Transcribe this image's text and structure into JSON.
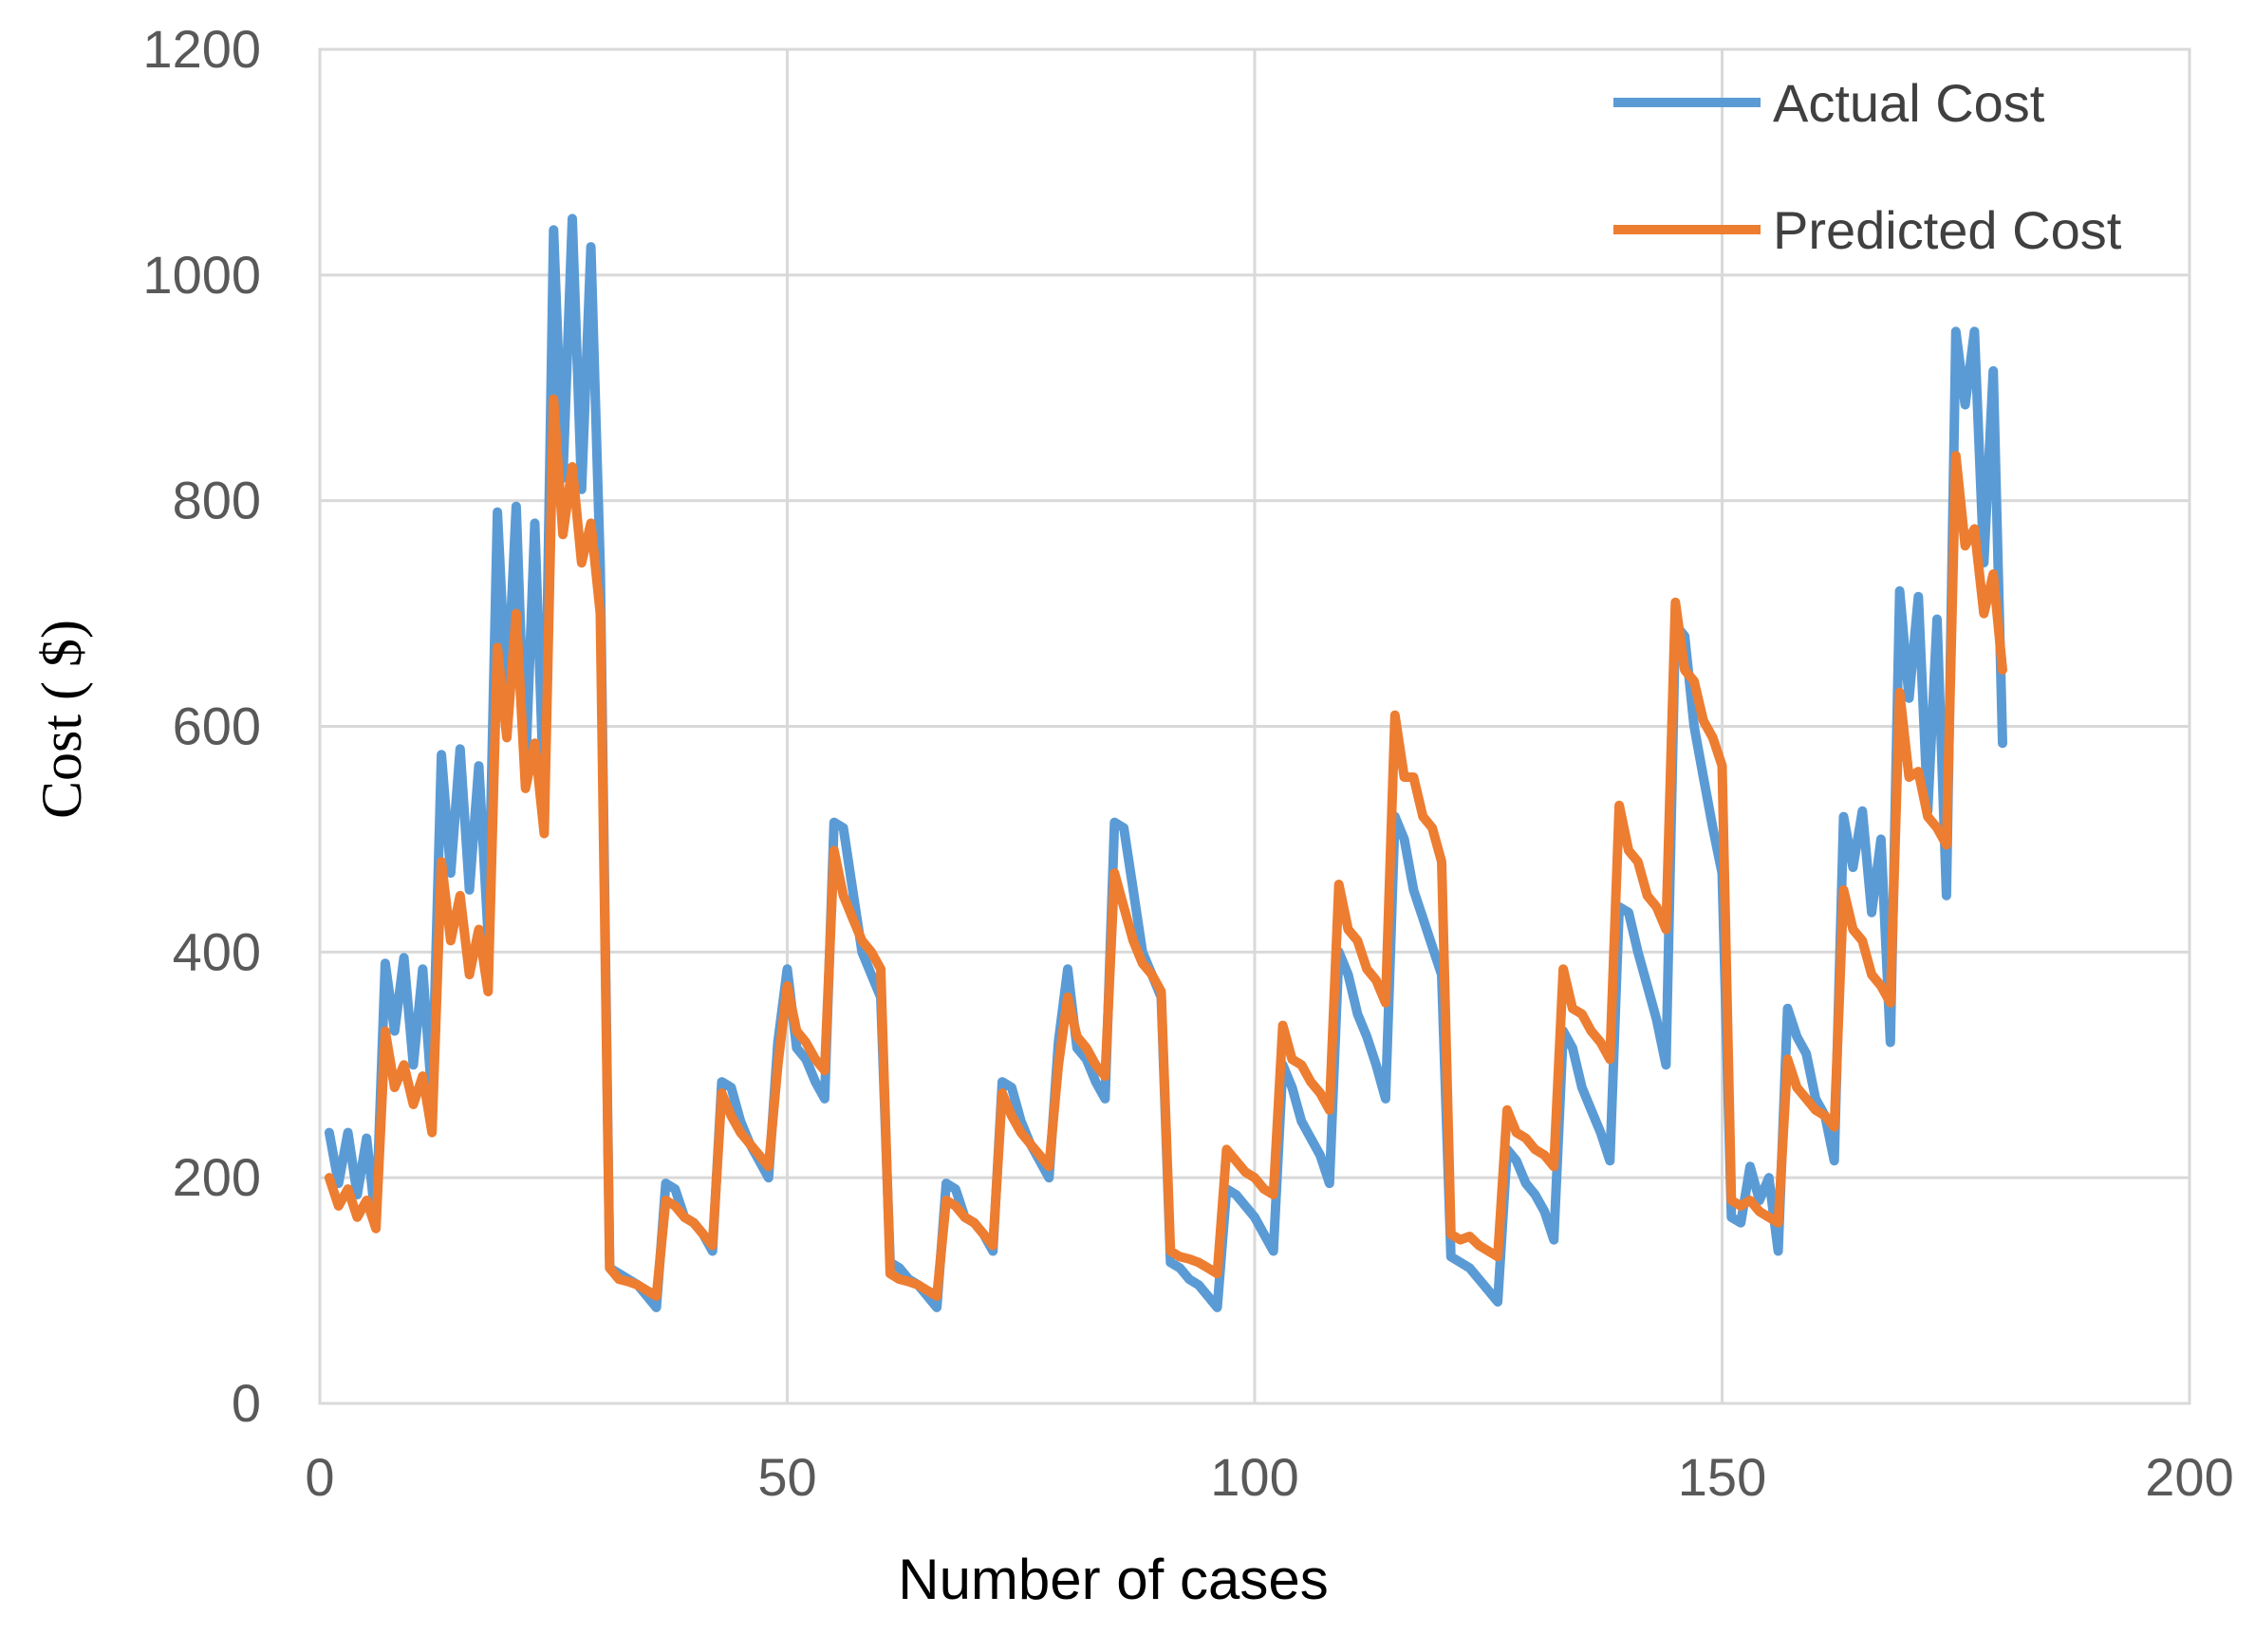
{
  "chart_data": {
    "type": "line",
    "title": "",
    "xlabel": "Number of cases",
    "ylabel": "Cost ( $)",
    "xlim": [
      0,
      200
    ],
    "ylim": [
      0,
      1200
    ],
    "xticks": [
      0,
      50,
      100,
      150,
      200
    ],
    "yticks": [
      0,
      200,
      400,
      600,
      800,
      1000,
      1200
    ],
    "grid": true,
    "legend_position": "top-right",
    "series": [
      {
        "name": "Actual Cost",
        "color": "#5B9BD5",
        "x": [
          1,
          2,
          3,
          4,
          5,
          6,
          7,
          8,
          9,
          10,
          11,
          12,
          13,
          14,
          15,
          16,
          17,
          18,
          19,
          20,
          21,
          22,
          23,
          24,
          25,
          26,
          27,
          28,
          29,
          30,
          31,
          32,
          33,
          34,
          35,
          36,
          37,
          38,
          39,
          40,
          41,
          42,
          43,
          44,
          45,
          46,
          47,
          48,
          49,
          50,
          51,
          52,
          53,
          54,
          55,
          56,
          57,
          58,
          59,
          60,
          61,
          62,
          63,
          64,
          65,
          66,
          67,
          68,
          69,
          70,
          71,
          72,
          73,
          74,
          75,
          76,
          77,
          78,
          79,
          80,
          81,
          82,
          83,
          84,
          85,
          86,
          87,
          88,
          89,
          90,
          91,
          92,
          93,
          94,
          95,
          96,
          97,
          98,
          99,
          100,
          101,
          102,
          103,
          104,
          105,
          106,
          107,
          108,
          109,
          110,
          111,
          112,
          113,
          114,
          115,
          116,
          117,
          118,
          119,
          120,
          121,
          122,
          123,
          124,
          125,
          126,
          127,
          128,
          129,
          130,
          131,
          132,
          133,
          134,
          135,
          136,
          137,
          138,
          139,
          140,
          141,
          142,
          143,
          144,
          145,
          146,
          147,
          148,
          149,
          150,
          151,
          152,
          153,
          154,
          155,
          156,
          157,
          158,
          159,
          160,
          161,
          162,
          163,
          164,
          165,
          166,
          167,
          168,
          169,
          170,
          171,
          172,
          173,
          174,
          175,
          176,
          177,
          178,
          179,
          180
        ],
        "values": [
          240,
          195,
          240,
          185,
          235,
          160,
          390,
          330,
          395,
          300,
          385,
          270,
          575,
          470,
          580,
          455,
          565,
          415,
          790,
          620,
          795,
          560,
          780,
          530,
          1040,
          820,
          1050,
          810,
          1025,
          740,
          120,
          115,
          110,
          105,
          95,
          85,
          195,
          190,
          165,
          160,
          150,
          135,
          285,
          280,
          250,
          230,
          215,
          200,
          320,
          385,
          315,
          305,
          285,
          270,
          515,
          510,
          455,
          400,
          380,
          360,
          125,
          120,
          110,
          105,
          95,
          85,
          195,
          190,
          165,
          160,
          150,
          135,
          285,
          280,
          250,
          230,
          215,
          200,
          320,
          385,
          315,
          305,
          285,
          270,
          515,
          510,
          455,
          400,
          380,
          360,
          125,
          120,
          110,
          105,
          95,
          85,
          190,
          185,
          175,
          165,
          150,
          135,
          300,
          280,
          250,
          235,
          220,
          195,
          400,
          380,
          345,
          325,
          300,
          270,
          520,
          500,
          455,
          430,
          405,
          380,
          130,
          125,
          120,
          110,
          100,
          90,
          225,
          215,
          195,
          185,
          170,
          145,
          330,
          315,
          280,
          260,
          240,
          215,
          440,
          435,
          400,
          370,
          340,
          300,
          690,
          680,
          600,
          555,
          510,
          470,
          165,
          160,
          210,
          180,
          200,
          135,
          350,
          325,
          310,
          270,
          255,
          215,
          520,
          475,
          525,
          435,
          500,
          320,
          720,
          625,
          715,
          525,
          695,
          450,
          950,
          885,
          950,
          745,
          915,
          585
        ]
      },
      {
        "name": "Predicted Cost",
        "color": "#ED7D31",
        "x": [
          1,
          2,
          3,
          4,
          5,
          6,
          7,
          8,
          9,
          10,
          11,
          12,
          13,
          14,
          15,
          16,
          17,
          18,
          19,
          20,
          21,
          22,
          23,
          24,
          25,
          26,
          27,
          28,
          29,
          30,
          31,
          32,
          33,
          34,
          35,
          36,
          37,
          38,
          39,
          40,
          41,
          42,
          43,
          44,
          45,
          46,
          47,
          48,
          49,
          50,
          51,
          52,
          53,
          54,
          55,
          56,
          57,
          58,
          59,
          60,
          61,
          62,
          63,
          64,
          65,
          66,
          67,
          68,
          69,
          70,
          71,
          72,
          73,
          74,
          75,
          76,
          77,
          78,
          79,
          80,
          81,
          82,
          83,
          84,
          85,
          86,
          87,
          88,
          89,
          90,
          91,
          92,
          93,
          94,
          95,
          96,
          97,
          98,
          99,
          100,
          101,
          102,
          103,
          104,
          105,
          106,
          107,
          108,
          109,
          110,
          111,
          112,
          113,
          114,
          115,
          116,
          117,
          118,
          119,
          120,
          121,
          122,
          123,
          124,
          125,
          126,
          127,
          128,
          129,
          130,
          131,
          132,
          133,
          134,
          135,
          136,
          137,
          138,
          139,
          140,
          141,
          142,
          143,
          144,
          145,
          146,
          147,
          148,
          149,
          150,
          151,
          152,
          153,
          154,
          155,
          156,
          157,
          158,
          159,
          160,
          161,
          162,
          163,
          164,
          165,
          166,
          167,
          168,
          169,
          170,
          171,
          172,
          173,
          174,
          175,
          176,
          177,
          178,
          179,
          180
        ],
        "values": [
          200,
          175,
          190,
          165,
          180,
          155,
          330,
          280,
          300,
          265,
          290,
          240,
          480,
          410,
          450,
          380,
          420,
          365,
          670,
          590,
          700,
          545,
          585,
          505,
          890,
          770,
          830,
          745,
          780,
          700,
          120,
          110,
          108,
          105,
          100,
          95,
          180,
          175,
          165,
          160,
          150,
          140,
          275,
          255,
          240,
          230,
          220,
          210,
          300,
          370,
          330,
          320,
          305,
          295,
          490,
          450,
          430,
          410,
          400,
          385,
          115,
          110,
          108,
          105,
          100,
          95,
          180,
          175,
          165,
          160,
          150,
          140,
          275,
          255,
          240,
          230,
          220,
          210,
          300,
          360,
          325,
          315,
          300,
          290,
          470,
          440,
          410,
          390,
          380,
          365,
          135,
          130,
          128,
          125,
          120,
          115,
          225,
          215,
          205,
          200,
          190,
          185,
          335,
          305,
          300,
          285,
          275,
          260,
          460,
          420,
          410,
          385,
          375,
          355,
          610,
          555,
          555,
          520,
          510,
          480,
          150,
          145,
          148,
          140,
          135,
          130,
          260,
          240,
          235,
          225,
          220,
          210,
          385,
          350,
          345,
          330,
          320,
          305,
          530,
          490,
          480,
          450,
          440,
          420,
          710,
          650,
          640,
          605,
          590,
          565,
          180,
          175,
          180,
          170,
          165,
          160,
          305,
          280,
          270,
          260,
          255,
          245,
          455,
          420,
          410,
          380,
          370,
          355,
          630,
          555,
          560,
          520,
          510,
          495,
          840,
          760,
          775,
          700,
          735,
          650
        ]
      }
    ]
  }
}
